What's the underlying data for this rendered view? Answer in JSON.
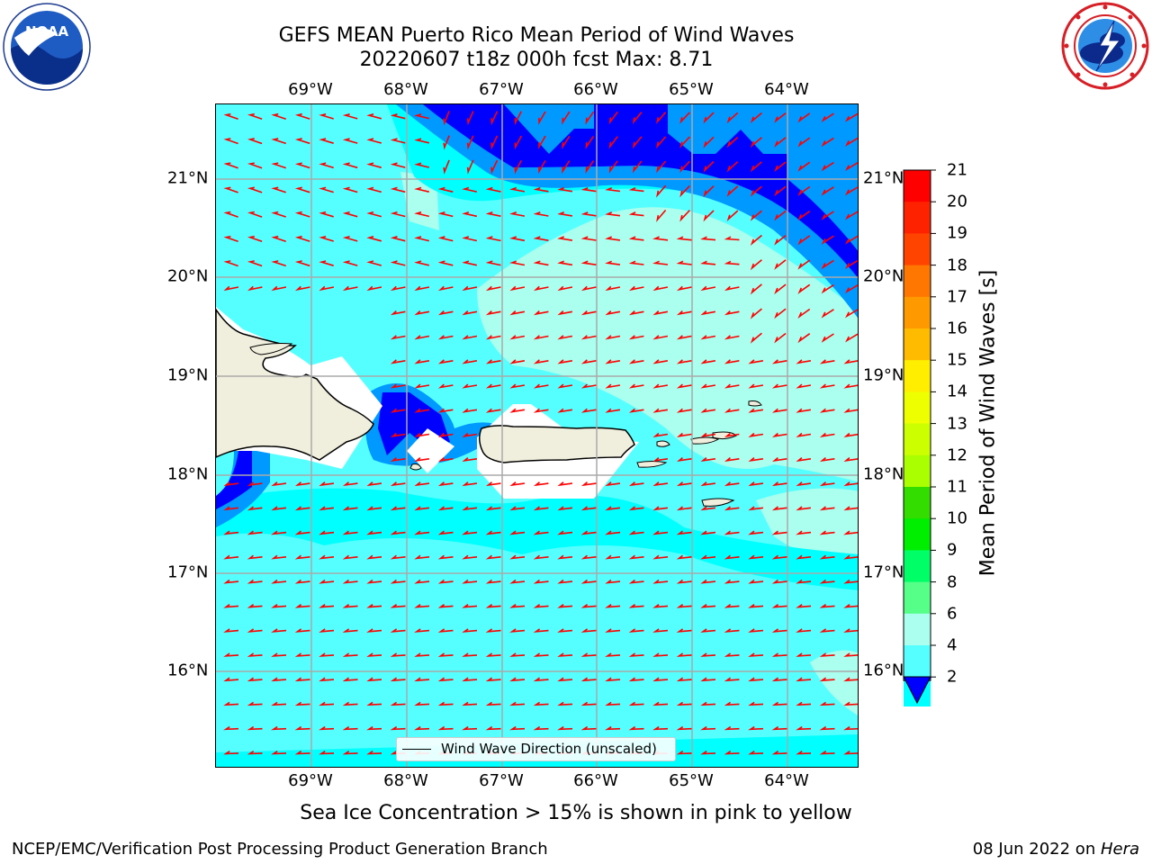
{
  "title_line1": "GEFS MEAN Puerto Rico Mean Period of Wind Waves",
  "title_line2": "20220607 t18z 000h fcst   Max: 8.71",
  "lon_labels": [
    "69°W",
    "68°W",
    "67°W",
    "66°W",
    "65°W",
    "64°W"
  ],
  "lat_labels": [
    "21°N",
    "20°N",
    "19°N",
    "18°N",
    "17°N",
    "16°N"
  ],
  "legend_label": "Wind Wave Direction (unscaled)",
  "colorbar": {
    "title": "Mean Period of Wind Waves [s]",
    "ticks": [
      "21",
      "20",
      "19",
      "18",
      "17",
      "16",
      "15",
      "14",
      "13",
      "12",
      "11",
      "10",
      "9",
      "8",
      "6",
      "4",
      "2"
    ],
    "colors": [
      "#ff0000",
      "#ff2200",
      "#ff4400",
      "#ff7700",
      "#ff9900",
      "#ffbb00",
      "#ffee00",
      "#eeff00",
      "#ccff00",
      "#aaff00",
      "#33dd00",
      "#00ee00",
      "#00ff66",
      "#55ff88",
      "#aaffee",
      "#55ffff",
      "#00ffff",
      "#0099ff",
      "#0000ff"
    ]
  },
  "subtitle": "Sea Ice Concentration > 15% is shown in pink to yellow",
  "footer_left": "NCEP/EMC/Verification Post Processing Product Generation Branch",
  "footer_date": "08 Jun 2022 on ",
  "footer_host": "Hera",
  "logos": {
    "left": "noaa-logo",
    "right": "nws-logo",
    "left_text": "NOAA"
  },
  "map": {
    "lon_range": [
      -70.0,
      -63.25
    ],
    "lat_range": [
      15.0,
      21.75
    ],
    "gridlines": true,
    "arrow_color": "#ff0000",
    "coastline_color": "#000000",
    "land_color": "#f0eedc",
    "ocean_base_color": "#55ffff"
  }
}
